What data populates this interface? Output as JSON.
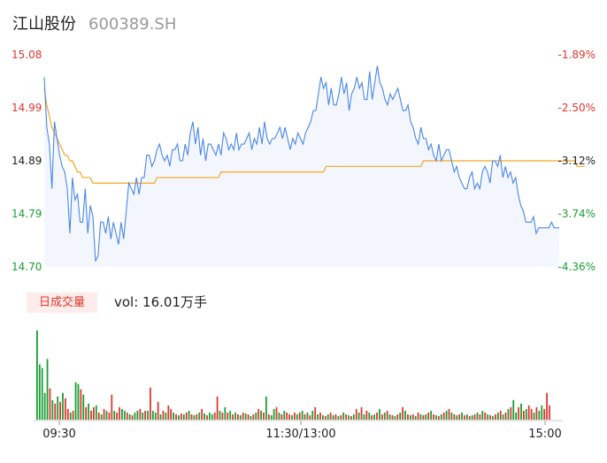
{
  "header": {
    "name": "江山股份",
    "code": "600389.SH"
  },
  "chart_data": {
    "type": "line",
    "price_ticks": [
      "15.08",
      "14.99",
      "14.89",
      "14.79",
      "14.70"
    ],
    "pct_ticks": [
      "-1.89%",
      "-2.50%",
      "-3.12%",
      "-3.74%",
      "-4.36%"
    ],
    "ylim": [
      14.7,
      15.08
    ],
    "time_labels": [
      "09:30",
      "11:30/13:00",
      "15:00"
    ],
    "price": [
      15.04,
      14.95,
      14.92,
      14.84,
      14.96,
      14.93,
      14.9,
      14.88,
      14.87,
      14.84,
      14.76,
      14.86,
      14.82,
      14.83,
      14.78,
      14.78,
      14.84,
      14.76,
      14.81,
      14.79,
      14.71,
      14.72,
      14.78,
      14.78,
      14.76,
      14.79,
      14.75,
      14.78,
      14.76,
      14.74,
      14.78,
      14.75,
      14.8,
      14.85,
      14.84,
      14.83,
      14.86,
      14.83,
      14.86,
      14.86,
      14.9,
      14.9,
      14.88,
      14.89,
      14.91,
      14.92,
      14.9,
      14.89,
      14.9,
      14.88,
      14.91,
      14.91,
      14.92,
      14.89,
      14.89,
      14.92,
      14.9,
      14.94,
      14.96,
      14.92,
      14.95,
      14.9,
      14.93,
      14.89,
      14.92,
      14.92,
      14.91,
      14.9,
      14.92,
      14.9,
      14.94,
      14.93,
      14.91,
      14.92,
      14.91,
      14.94,
      14.91,
      14.92,
      14.92,
      14.93,
      14.94,
      14.91,
      14.93,
      14.92,
      14.95,
      14.92,
      14.96,
      14.93,
      14.92,
      14.93,
      14.93,
      14.94,
      14.95,
      14.93,
      14.95,
      14.93,
      14.91,
      14.93,
      14.92,
      14.94,
      14.93,
      14.92,
      14.94,
      14.95,
      14.96,
      14.98,
      14.98,
      15.01,
      15.04,
      15.02,
      15.03,
      14.99,
      15.02,
      14.99,
      14.99,
      15.01,
      15.04,
      15.01,
      15.03,
      14.98,
      15.01,
      15.02,
      15.04,
      15.02,
      15.03,
      15.0,
      15.0,
      15.05,
      15.0,
      15.03,
      15.06,
      15.03,
      15.02,
      15.0,
      14.99,
      15.01,
      15.0,
      15.01,
      15.02,
      15.0,
      14.98,
      14.98,
      14.99,
      14.96,
      14.95,
      14.93,
      14.92,
      14.95,
      14.93,
      14.93,
      14.91,
      14.92,
      14.9,
      14.89,
      14.92,
      14.89,
      14.9,
      14.91,
      14.91,
      14.89,
      14.87,
      14.88,
      14.86,
      14.85,
      14.84,
      14.84,
      14.86,
      14.87,
      14.84,
      14.85,
      14.84,
      14.87,
      14.88,
      14.87,
      14.85,
      14.89,
      14.89,
      14.88,
      14.9,
      14.86,
      14.88,
      14.86,
      14.87,
      14.85,
      14.86,
      14.83,
      14.81,
      14.8,
      14.78,
      14.78,
      14.78,
      14.79,
      14.76,
      14.77,
      14.77,
      14.77,
      14.77,
      14.77,
      14.78,
      14.77,
      14.77,
      14.77
    ],
    "avg": [
      15.02,
      14.99,
      14.97,
      14.95,
      14.94,
      14.93,
      14.92,
      14.91,
      14.9,
      14.9,
      14.89,
      14.89,
      14.88,
      14.87,
      14.87,
      14.86,
      14.86,
      14.86,
      14.86,
      14.85,
      14.85,
      14.85,
      14.85,
      14.85,
      14.85,
      14.85,
      14.85,
      14.85,
      14.85,
      14.85,
      14.85,
      14.85,
      14.85,
      14.85,
      14.85,
      14.85,
      14.85,
      14.85,
      14.85,
      14.85,
      14.85,
      14.85,
      14.85,
      14.85,
      14.86,
      14.86,
      14.86,
      14.86,
      14.86,
      14.86,
      14.86,
      14.86,
      14.86,
      14.86,
      14.86,
      14.86,
      14.86,
      14.86,
      14.86,
      14.86,
      14.86,
      14.86,
      14.86,
      14.86,
      14.86,
      14.86,
      14.86,
      14.86,
      14.86,
      14.87,
      14.87,
      14.87,
      14.87,
      14.87,
      14.87,
      14.87,
      14.87,
      14.87,
      14.87,
      14.87,
      14.87,
      14.87,
      14.87,
      14.87,
      14.87,
      14.87,
      14.87,
      14.87,
      14.87,
      14.87,
      14.87,
      14.87,
      14.87,
      14.87,
      14.87,
      14.87,
      14.87,
      14.87,
      14.87,
      14.87,
      14.87,
      14.87,
      14.87,
      14.87,
      14.87,
      14.87,
      14.87,
      14.87,
      14.87,
      14.87,
      14.88,
      14.88,
      14.88,
      14.88,
      14.88,
      14.88,
      14.88,
      14.88,
      14.88,
      14.88,
      14.88,
      14.88,
      14.88,
      14.88,
      14.88,
      14.88,
      14.88,
      14.88,
      14.88,
      14.88,
      14.88,
      14.88,
      14.88,
      14.88,
      14.88,
      14.88,
      14.88,
      14.88,
      14.88,
      14.88,
      14.88,
      14.88,
      14.88,
      14.88,
      14.88,
      14.88,
      14.88,
      14.88,
      14.89,
      14.89,
      14.89,
      14.89,
      14.89,
      14.89,
      14.89,
      14.89,
      14.89,
      14.89,
      14.89,
      14.89,
      14.89,
      14.89,
      14.89,
      14.89,
      14.89,
      14.89,
      14.89,
      14.89,
      14.89,
      14.89,
      14.89,
      14.89,
      14.89,
      14.89,
      14.89,
      14.89,
      14.89,
      14.89,
      14.89,
      14.89,
      14.89,
      14.89,
      14.89,
      14.89,
      14.89,
      14.89,
      14.89,
      14.89,
      14.89,
      14.89,
      14.89,
      14.89,
      14.89,
      14.89,
      14.89,
      14.89,
      14.89,
      14.89,
      14.89,
      14.89,
      14.89,
      14.89,
      14.89,
      14.89,
      14.89,
      14.89,
      14.89,
      14.89,
      14.88,
      14.88,
      14.88,
      14.88
    ],
    "volume": {
      "label": "日成交量",
      "total_text": "vol: 16.01万手",
      "bars": [
        {
          "v": 100,
          "d": "up"
        },
        {
          "v": 62,
          "d": "up"
        },
        {
          "v": 58,
          "d": "up"
        },
        {
          "v": 30,
          "d": "up"
        },
        {
          "v": 68,
          "d": "up"
        },
        {
          "v": 35,
          "d": "down"
        },
        {
          "v": 22,
          "d": "up"
        },
        {
          "v": 18,
          "d": "down"
        },
        {
          "v": 26,
          "d": "up"
        },
        {
          "v": 20,
          "d": "down"
        },
        {
          "v": 30,
          "d": "up"
        },
        {
          "v": 24,
          "d": "down"
        },
        {
          "v": 12,
          "d": "down"
        },
        {
          "v": 8,
          "d": "up"
        },
        {
          "v": 10,
          "d": "down"
        },
        {
          "v": 42,
          "d": "up"
        },
        {
          "v": 40,
          "d": "up"
        },
        {
          "v": 34,
          "d": "down"
        },
        {
          "v": 28,
          "d": "up"
        },
        {
          "v": 14,
          "d": "down"
        },
        {
          "v": 18,
          "d": "up"
        },
        {
          "v": 10,
          "d": "down"
        },
        {
          "v": 14,
          "d": "down"
        },
        {
          "v": 16,
          "d": "up"
        },
        {
          "v": 8,
          "d": "down"
        },
        {
          "v": 6,
          "d": "up"
        },
        {
          "v": 12,
          "d": "down"
        },
        {
          "v": 10,
          "d": "up"
        },
        {
          "v": 8,
          "d": "down"
        },
        {
          "v": 28,
          "d": "down"
        },
        {
          "v": 10,
          "d": "up"
        },
        {
          "v": 8,
          "d": "down"
        },
        {
          "v": 14,
          "d": "down"
        },
        {
          "v": 12,
          "d": "up"
        },
        {
          "v": 10,
          "d": "up"
        },
        {
          "v": 8,
          "d": "down"
        },
        {
          "v": 6,
          "d": "up"
        },
        {
          "v": 5,
          "d": "down"
        },
        {
          "v": 8,
          "d": "up"
        },
        {
          "v": 10,
          "d": "up"
        },
        {
          "v": 12,
          "d": "down"
        },
        {
          "v": 8,
          "d": "up"
        },
        {
          "v": 10,
          "d": "down"
        },
        {
          "v": 10,
          "d": "up"
        },
        {
          "v": 36,
          "d": "down"
        },
        {
          "v": 10,
          "d": "up"
        },
        {
          "v": 8,
          "d": "up"
        },
        {
          "v": 20,
          "d": "down"
        },
        {
          "v": 6,
          "d": "up"
        },
        {
          "v": 10,
          "d": "down"
        },
        {
          "v": 8,
          "d": "up"
        },
        {
          "v": 16,
          "d": "down"
        },
        {
          "v": 12,
          "d": "down"
        },
        {
          "v": 8,
          "d": "up"
        },
        {
          "v": 6,
          "d": "down"
        },
        {
          "v": 5,
          "d": "up"
        },
        {
          "v": 7,
          "d": "down"
        },
        {
          "v": 6,
          "d": "up"
        },
        {
          "v": 8,
          "d": "down"
        },
        {
          "v": 10,
          "d": "up"
        },
        {
          "v": 6,
          "d": "down"
        },
        {
          "v": 5,
          "d": "up"
        },
        {
          "v": 6,
          "d": "down"
        },
        {
          "v": 8,
          "d": "up"
        },
        {
          "v": 12,
          "d": "down"
        },
        {
          "v": 7,
          "d": "up"
        },
        {
          "v": 5,
          "d": "down"
        },
        {
          "v": 8,
          "d": "up"
        },
        {
          "v": 6,
          "d": "up"
        },
        {
          "v": 8,
          "d": "down"
        },
        {
          "v": 26,
          "d": "down"
        },
        {
          "v": 10,
          "d": "up"
        },
        {
          "v": 8,
          "d": "down"
        },
        {
          "v": 14,
          "d": "up"
        },
        {
          "v": 8,
          "d": "down"
        },
        {
          "v": 10,
          "d": "up"
        },
        {
          "v": 6,
          "d": "down"
        },
        {
          "v": 8,
          "d": "up"
        },
        {
          "v": 6,
          "d": "down"
        },
        {
          "v": 5,
          "d": "up"
        },
        {
          "v": 8,
          "d": "down"
        },
        {
          "v": 7,
          "d": "up"
        },
        {
          "v": 6,
          "d": "down"
        },
        {
          "v": 4,
          "d": "up"
        },
        {
          "v": 6,
          "d": "down"
        },
        {
          "v": 8,
          "d": "up"
        },
        {
          "v": 12,
          "d": "down"
        },
        {
          "v": 10,
          "d": "up"
        },
        {
          "v": 8,
          "d": "down"
        },
        {
          "v": 26,
          "d": "up"
        },
        {
          "v": 6,
          "d": "down"
        },
        {
          "v": 5,
          "d": "up"
        },
        {
          "v": 12,
          "d": "up"
        },
        {
          "v": 14,
          "d": "down"
        },
        {
          "v": 8,
          "d": "up"
        },
        {
          "v": 6,
          "d": "down"
        },
        {
          "v": 10,
          "d": "up"
        },
        {
          "v": 8,
          "d": "down"
        },
        {
          "v": 6,
          "d": "down"
        },
        {
          "v": 5,
          "d": "up"
        },
        {
          "v": 8,
          "d": "down"
        },
        {
          "v": 6,
          "d": "up"
        },
        {
          "v": 8,
          "d": "down"
        },
        {
          "v": 10,
          "d": "up"
        },
        {
          "v": 6,
          "d": "down"
        },
        {
          "v": 8,
          "d": "up"
        },
        {
          "v": 5,
          "d": "down"
        },
        {
          "v": 10,
          "d": "up"
        },
        {
          "v": 14,
          "d": "down"
        },
        {
          "v": 6,
          "d": "up"
        },
        {
          "v": 8,
          "d": "down"
        },
        {
          "v": 5,
          "d": "up"
        },
        {
          "v": 4,
          "d": "down"
        },
        {
          "v": 6,
          "d": "up"
        },
        {
          "v": 8,
          "d": "down"
        },
        {
          "v": 5,
          "d": "up"
        },
        {
          "v": 6,
          "d": "down"
        },
        {
          "v": 4,
          "d": "up"
        },
        {
          "v": 5,
          "d": "down"
        },
        {
          "v": 8,
          "d": "up"
        },
        {
          "v": 6,
          "d": "down"
        },
        {
          "v": 5,
          "d": "up"
        },
        {
          "v": 4,
          "d": "down"
        },
        {
          "v": 6,
          "d": "up"
        },
        {
          "v": 12,
          "d": "down"
        },
        {
          "v": 8,
          "d": "up"
        },
        {
          "v": 14,
          "d": "down"
        },
        {
          "v": 6,
          "d": "up"
        },
        {
          "v": 10,
          "d": "down"
        },
        {
          "v": 8,
          "d": "up"
        },
        {
          "v": 5,
          "d": "down"
        },
        {
          "v": 6,
          "d": "up"
        },
        {
          "v": 8,
          "d": "down"
        },
        {
          "v": 12,
          "d": "up"
        },
        {
          "v": 6,
          "d": "down"
        },
        {
          "v": 8,
          "d": "up"
        },
        {
          "v": 10,
          "d": "down"
        },
        {
          "v": 6,
          "d": "up"
        },
        {
          "v": 5,
          "d": "down"
        },
        {
          "v": 4,
          "d": "up"
        },
        {
          "v": 6,
          "d": "down"
        },
        {
          "v": 8,
          "d": "up"
        },
        {
          "v": 14,
          "d": "down"
        },
        {
          "v": 10,
          "d": "up"
        },
        {
          "v": 6,
          "d": "down"
        },
        {
          "v": 5,
          "d": "up"
        },
        {
          "v": 6,
          "d": "down"
        },
        {
          "v": 4,
          "d": "up"
        },
        {
          "v": 8,
          "d": "down"
        },
        {
          "v": 6,
          "d": "up"
        },
        {
          "v": 5,
          "d": "down"
        },
        {
          "v": 6,
          "d": "up"
        },
        {
          "v": 8,
          "d": "down"
        },
        {
          "v": 10,
          "d": "up"
        },
        {
          "v": 6,
          "d": "down"
        },
        {
          "v": 5,
          "d": "up"
        },
        {
          "v": 4,
          "d": "down"
        },
        {
          "v": 6,
          "d": "up"
        },
        {
          "v": 8,
          "d": "down"
        },
        {
          "v": 10,
          "d": "up"
        },
        {
          "v": 12,
          "d": "down"
        },
        {
          "v": 8,
          "d": "up"
        },
        {
          "v": 6,
          "d": "down"
        },
        {
          "v": 5,
          "d": "up"
        },
        {
          "v": 6,
          "d": "down"
        },
        {
          "v": 8,
          "d": "up"
        },
        {
          "v": 5,
          "d": "down"
        },
        {
          "v": 6,
          "d": "up"
        },
        {
          "v": 4,
          "d": "down"
        },
        {
          "v": 5,
          "d": "up"
        },
        {
          "v": 6,
          "d": "down"
        },
        {
          "v": 8,
          "d": "up"
        },
        {
          "v": 6,
          "d": "down"
        },
        {
          "v": 10,
          "d": "up"
        },
        {
          "v": 8,
          "d": "down"
        },
        {
          "v": 6,
          "d": "up"
        },
        {
          "v": 5,
          "d": "down"
        },
        {
          "v": 4,
          "d": "up"
        },
        {
          "v": 6,
          "d": "down"
        },
        {
          "v": 8,
          "d": "up"
        },
        {
          "v": 10,
          "d": "down"
        },
        {
          "v": 6,
          "d": "up"
        },
        {
          "v": 8,
          "d": "down"
        },
        {
          "v": 12,
          "d": "up"
        },
        {
          "v": 14,
          "d": "down"
        },
        {
          "v": 22,
          "d": "up"
        },
        {
          "v": 8,
          "d": "up"
        },
        {
          "v": 14,
          "d": "down"
        },
        {
          "v": 18,
          "d": "up"
        },
        {
          "v": 10,
          "d": "down"
        },
        {
          "v": 12,
          "d": "up"
        },
        {
          "v": 16,
          "d": "down"
        },
        {
          "v": 12,
          "d": "down"
        },
        {
          "v": 8,
          "d": "up"
        },
        {
          "v": 14,
          "d": "down"
        },
        {
          "v": 10,
          "d": "up"
        },
        {
          "v": 16,
          "d": "up"
        },
        {
          "v": 12,
          "d": "down"
        },
        {
          "v": 30,
          "d": "down"
        },
        {
          "v": 16,
          "d": "down"
        }
      ]
    }
  },
  "colors": {
    "price_line": "#4a86e8",
    "avg_line": "#f5a623",
    "up_price": "#e0372e",
    "down_price": "#1aa037",
    "vol_up": "#1aa037",
    "vol_down": "#e0372e",
    "axis_text": "#222222"
  }
}
